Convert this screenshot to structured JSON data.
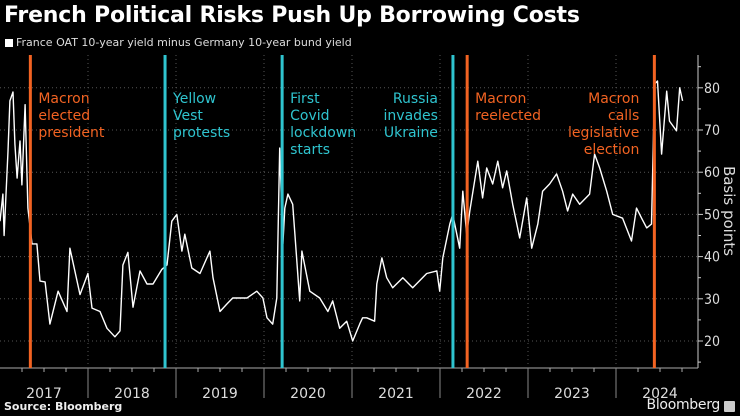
{
  "title": "French Political Risks Push Up Borrowing Costs",
  "source": "Source: Bloomberg",
  "brand": "Bloomberg",
  "chart_data": {
    "type": "line",
    "legend_position": "top-left",
    "ylabel": "Basis points",
    "ylim": [
      14,
      88
    ],
    "yticks": [
      20,
      30,
      40,
      50,
      60,
      70,
      80
    ],
    "xlim": [
      "2017-01-01",
      "2024-12-31"
    ],
    "xtick_labels": [
      "2017",
      "2018",
      "2019",
      "2020",
      "2021",
      "2022",
      "2023",
      "2024"
    ],
    "grid": true,
    "y_axis_side": "right",
    "colors": {
      "line": "#ffffff",
      "orange": "#f26322",
      "cyan": "#2fc4cf",
      "grid": "#555555"
    },
    "series": [
      {
        "name": "France OAT 10-year yield minus Germany 10-year bund yield",
        "points": [
          [
            "2017-01-01",
            48.4
          ],
          [
            "2017-01-13",
            54.8
          ],
          [
            "2017-01-18",
            45
          ],
          [
            "2017-02-03",
            65
          ],
          [
            "2017-02-11",
            76.9
          ],
          [
            "2017-02-24",
            79
          ],
          [
            "2017-03-04",
            66.7
          ],
          [
            "2017-03-13",
            58.6
          ],
          [
            "2017-03-25",
            67.4
          ],
          [
            "2017-04-02",
            57
          ],
          [
            "2017-04-15",
            76
          ],
          [
            "2017-04-27",
            51.5
          ],
          [
            "2017-05-14",
            43
          ],
          [
            "2017-06-03",
            43
          ],
          [
            "2017-06-16",
            34.2
          ],
          [
            "2017-07-07",
            34
          ],
          [
            "2017-07-27",
            24
          ],
          [
            "2017-08-30",
            31.8
          ],
          [
            "2017-10-06",
            27
          ],
          [
            "2017-10-18",
            42
          ],
          [
            "2017-11-29",
            31
          ],
          [
            "2018-01-01",
            36
          ],
          [
            "2018-01-18",
            27.8
          ],
          [
            "2018-02-20",
            27
          ],
          [
            "2018-03-21",
            23
          ],
          [
            "2018-04-23",
            21
          ],
          [
            "2018-05-14",
            22.4
          ],
          [
            "2018-05-26",
            38
          ],
          [
            "2018-06-16",
            41
          ],
          [
            "2018-07-07",
            28
          ],
          [
            "2018-08-05",
            36.6
          ],
          [
            "2018-09-03",
            33.5
          ],
          [
            "2018-09-28",
            33.5
          ],
          [
            "2018-11-04",
            37
          ],
          [
            "2018-11-25",
            38
          ],
          [
            "2018-12-15",
            48.4
          ],
          [
            "2019-01-05",
            50
          ],
          [
            "2019-01-26",
            41.3
          ],
          [
            "2019-02-07",
            45.3
          ],
          [
            "2019-03-08",
            37.3
          ],
          [
            "2019-04-11",
            36
          ],
          [
            "2019-05-22",
            41.3
          ],
          [
            "2019-06-04",
            35
          ],
          [
            "2019-07-03",
            27
          ],
          [
            "2019-08-01",
            28.8
          ],
          [
            "2019-08-25",
            30.2
          ],
          [
            "2019-10-23",
            30.2
          ],
          [
            "2019-12-03",
            31.8
          ],
          [
            "2019-12-28",
            30.2
          ],
          [
            "2020-01-14",
            25.5
          ],
          [
            "2020-02-07",
            24
          ],
          [
            "2020-02-24",
            30.2
          ],
          [
            "2020-03-07",
            65.7
          ],
          [
            "2020-03-20",
            43
          ],
          [
            "2020-03-28",
            51.5
          ],
          [
            "2020-04-10",
            54.8
          ],
          [
            "2020-04-30",
            52.4
          ],
          [
            "2020-05-09",
            45.3
          ],
          [
            "2020-05-29",
            29.5
          ],
          [
            "2020-06-07",
            41.3
          ],
          [
            "2020-07-10",
            31.8
          ],
          [
            "2020-08-20",
            30.2
          ],
          [
            "2020-09-23",
            27
          ],
          [
            "2020-10-13",
            29.5
          ],
          [
            "2020-11-11",
            23
          ],
          [
            "2020-12-10",
            24.7
          ],
          [
            "2021-01-04",
            20
          ],
          [
            "2021-02-02",
            24
          ],
          [
            "2021-02-14",
            25.5
          ],
          [
            "2021-03-03",
            25.5
          ],
          [
            "2021-04-05",
            24.7
          ],
          [
            "2021-04-14",
            33.5
          ],
          [
            "2021-05-05",
            39.7
          ],
          [
            "2021-05-25",
            35
          ],
          [
            "2021-06-19",
            32.6
          ],
          [
            "2021-07-31",
            35
          ],
          [
            "2021-09-10",
            32.6
          ],
          [
            "2021-11-07",
            36
          ],
          [
            "2021-12-19",
            36.6
          ],
          [
            "2021-12-31",
            31.8
          ],
          [
            "2022-01-13",
            39.7
          ],
          [
            "2022-02-11",
            47.7
          ],
          [
            "2022-02-23",
            50
          ],
          [
            "2022-03-24",
            42
          ],
          [
            "2022-04-06",
            55.5
          ],
          [
            "2022-04-22",
            45.3
          ],
          [
            "2022-05-05",
            50.8
          ],
          [
            "2022-06-07",
            62.6
          ],
          [
            "2022-06-27",
            53.9
          ],
          [
            "2022-07-14",
            61
          ],
          [
            "2022-08-08",
            57.2
          ],
          [
            "2022-08-29",
            62.6
          ],
          [
            "2022-09-18",
            56.3
          ],
          [
            "2022-10-05",
            60.3
          ],
          [
            "2022-10-30",
            52.4
          ],
          [
            "2022-11-28",
            44.4
          ],
          [
            "2022-12-27",
            53.9
          ],
          [
            "2023-01-17",
            42
          ],
          [
            "2023-02-11",
            47.7
          ],
          [
            "2023-03-03",
            55.5
          ],
          [
            "2023-04-01",
            57.2
          ],
          [
            "2023-04-30",
            59.6
          ],
          [
            "2023-05-25",
            55.5
          ],
          [
            "2023-06-15",
            50.8
          ],
          [
            "2023-07-06",
            54.8
          ],
          [
            "2023-08-04",
            52.4
          ],
          [
            "2023-09-14",
            54.8
          ],
          [
            "2023-10-05",
            64.3
          ],
          [
            "2023-10-26",
            61
          ],
          [
            "2023-11-24",
            55.5
          ],
          [
            "2023-12-19",
            50
          ],
          [
            "2024-01-29",
            49.1
          ],
          [
            "2024-03-06",
            43.7
          ],
          [
            "2024-03-27",
            51.5
          ],
          [
            "2024-04-17",
            49.1
          ],
          [
            "2024-05-08",
            46.8
          ],
          [
            "2024-05-28",
            47.7
          ],
          [
            "2024-06-10",
            80.9
          ],
          [
            "2024-06-22",
            81.6
          ],
          [
            "2024-07-09",
            64.3
          ],
          [
            "2024-07-30",
            79.2
          ],
          [
            "2024-08-11",
            72.1
          ],
          [
            "2024-09-09",
            69.8
          ],
          [
            "2024-09-22",
            80
          ],
          [
            "2024-10-04",
            76.9
          ]
        ]
      }
    ],
    "annotations": [
      {
        "date": "2017-05-07",
        "color": "orange",
        "align": "left",
        "lines": [
          "Macron",
          "elected",
          "president"
        ]
      },
      {
        "date": "2018-11-17",
        "color": "cyan",
        "align": "left",
        "lines": [
          "Yellow",
          "Vest",
          "protests"
        ]
      },
      {
        "date": "2020-03-17",
        "color": "cyan",
        "align": "left",
        "lines": [
          "First",
          "Covid",
          "lockdown",
          "starts"
        ]
      },
      {
        "date": "2022-02-24",
        "color": "cyan",
        "align": "right",
        "lines": [
          "Russia",
          "invades",
          "Ukraine"
        ]
      },
      {
        "date": "2022-04-24",
        "color": "orange",
        "align": "left",
        "lines": [
          "Macron",
          "reelected"
        ]
      },
      {
        "date": "2024-06-09",
        "color": "orange",
        "align": "right",
        "lines": [
          "Macron",
          "calls",
          "legislative",
          "election"
        ]
      }
    ]
  }
}
